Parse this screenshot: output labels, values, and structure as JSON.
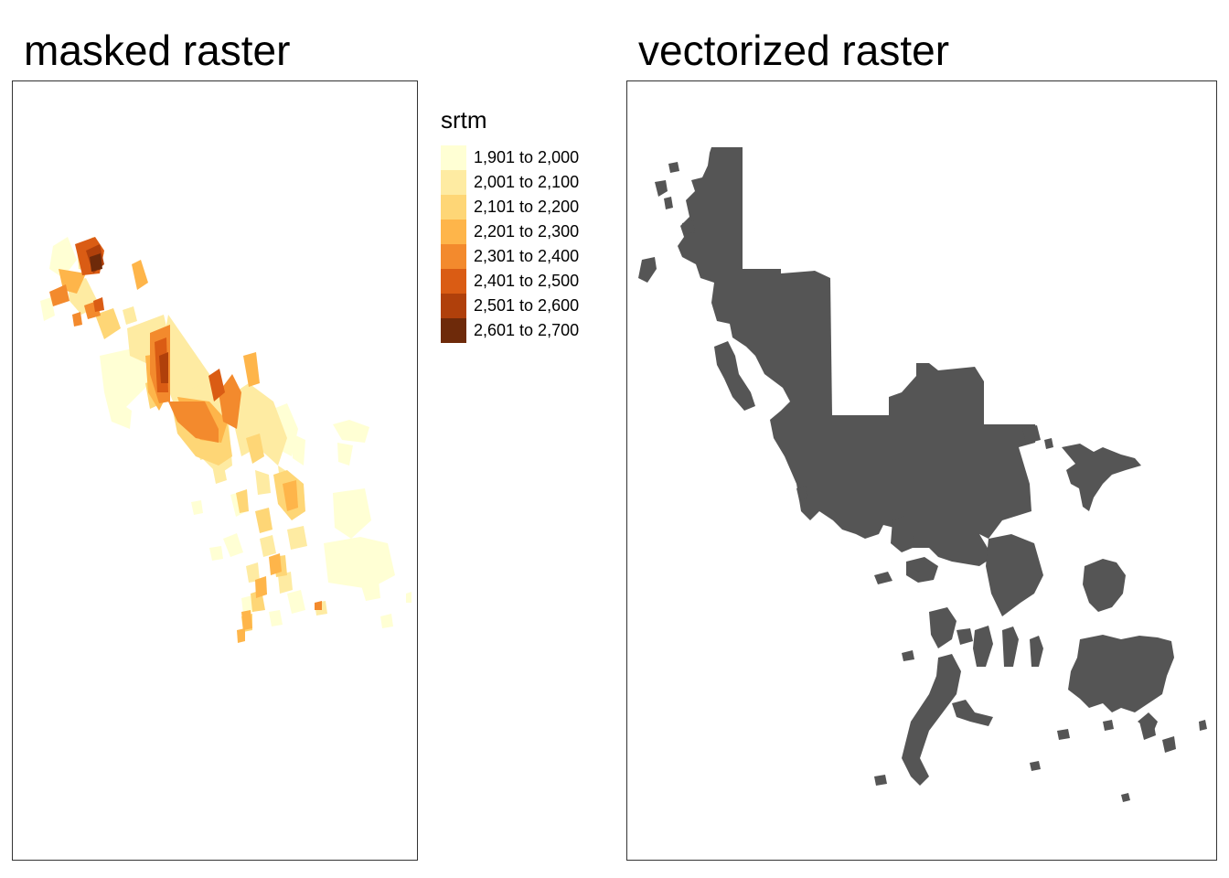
{
  "panels": {
    "left": {
      "title": "masked raster"
    },
    "right": {
      "title": "vectorized raster",
      "fill": "#555555"
    }
  },
  "legend": {
    "title": "srtm",
    "classes": [
      {
        "label": "1,901 to 2,000",
        "color": "#ffffd4"
      },
      {
        "label": "2,001 to 2,100",
        "color": "#feeba2"
      },
      {
        "label": "2,101 to 2,200",
        "color": "#fed676"
      },
      {
        "label": "2,201 to 2,300",
        "color": "#feb54a"
      },
      {
        "label": "2,301 to 2,400",
        "color": "#f38a2d"
      },
      {
        "label": "2,401 to 2,500",
        "color": "#da5c14"
      },
      {
        "label": "2,501 to 2,600",
        "color": "#b0400b"
      },
      {
        "label": "2,601 to 2,700",
        "color": "#6e2a0a"
      }
    ]
  }
}
